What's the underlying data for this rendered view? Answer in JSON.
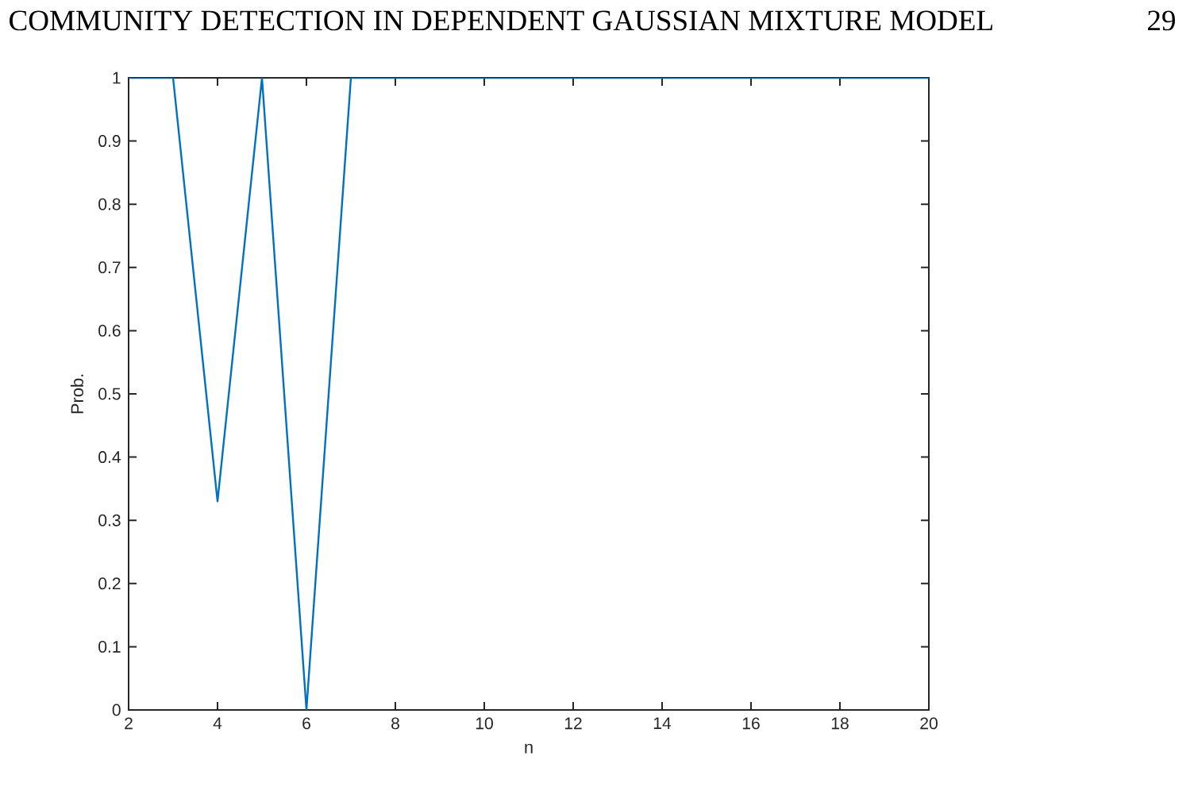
{
  "chart_data": {
    "type": "line",
    "annotations": [
      "COMMUNITY DETECTION IN DEPENDENT GAUSSIAN MIXTURE MODEL",
      "29"
    ],
    "xlabel": "n",
    "ylabel": "Prob.",
    "x": [
      2,
      3,
      4,
      5,
      6,
      7,
      8,
      9,
      10,
      11,
      12,
      13,
      14,
      15,
      16,
      17,
      18,
      19,
      20
    ],
    "values": [
      1,
      1,
      0.33,
      1,
      0,
      1,
      1,
      1,
      1,
      1,
      1,
      1,
      1,
      1,
      1,
      1,
      1,
      1,
      1
    ],
    "color": "#0072bd",
    "xlim": [
      2,
      20
    ],
    "ylim": [
      0,
      1
    ],
    "xticks": [
      2,
      4,
      6,
      8,
      10,
      12,
      14,
      16,
      18,
      20
    ],
    "yticks": [
      0,
      0.1,
      0.2,
      0.3,
      0.4,
      0.5,
      0.6,
      0.7,
      0.8,
      0.9,
      1
    ],
    "marker": "none",
    "line_style": "solid"
  }
}
